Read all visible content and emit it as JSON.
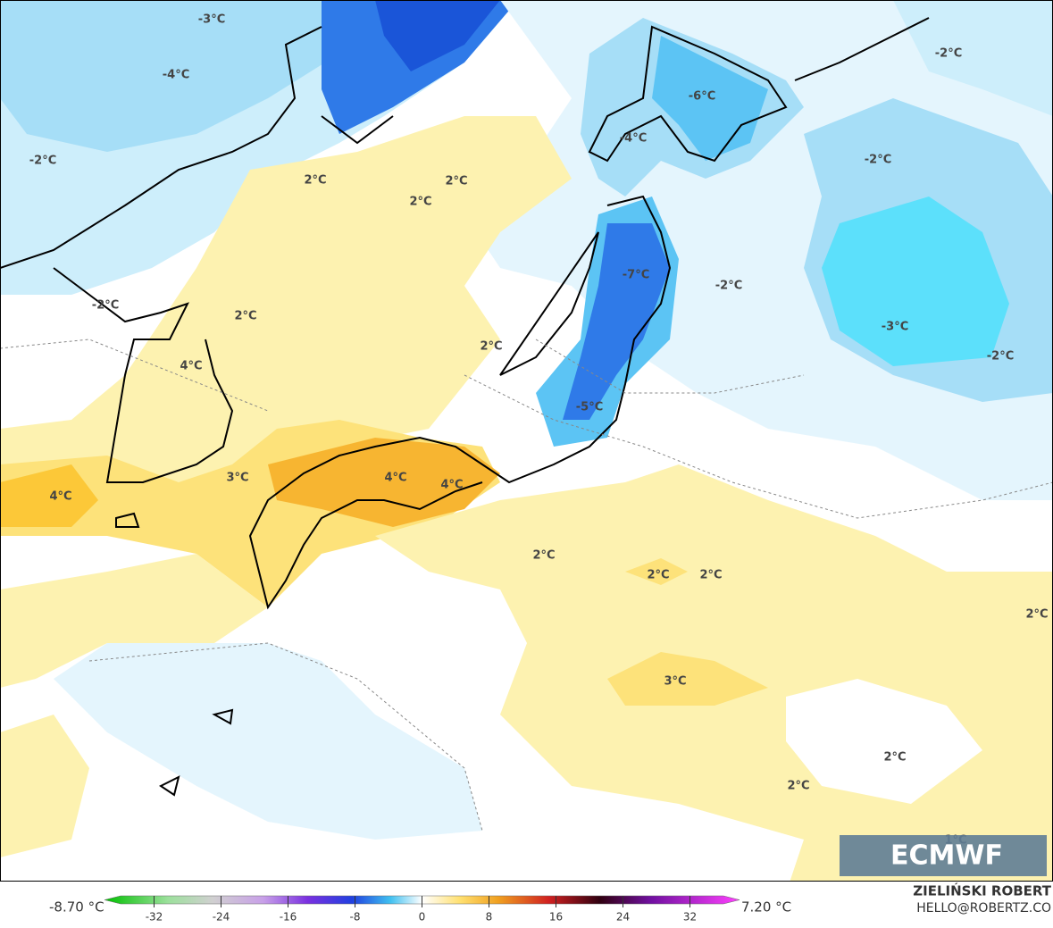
{
  "map": {
    "contour_labels": [
      "-3°C",
      "-4°C",
      "-2°C",
      "2°C",
      "2°C",
      "2°C",
      "-6°C",
      "-4°C",
      "-2°C",
      "-2°C",
      "-7°C",
      "-2°C",
      "-3°C",
      "-2°C",
      "-2°C",
      "2°C",
      "2°C",
      "4°C",
      "-5°C",
      "3°C",
      "4°C",
      "4°C",
      "4°C",
      "2°C",
      "2°C",
      "2°C",
      "2°C",
      "3°C",
      "2°C",
      "2°C",
      "1°C"
    ],
    "logo": "ECMWF",
    "colorbar": {
      "min_label": "-8.70 °C",
      "max_label": "7.20 °C",
      "lim": [
        -36,
        36
      ],
      "ticks": [
        -32,
        -24,
        -16,
        -8,
        0,
        8,
        16,
        24,
        32
      ]
    },
    "credit": {
      "author": "ZIELIŃSKI ROBERT",
      "contact": "HELLO@ROBERTZ.CO"
    }
  }
}
